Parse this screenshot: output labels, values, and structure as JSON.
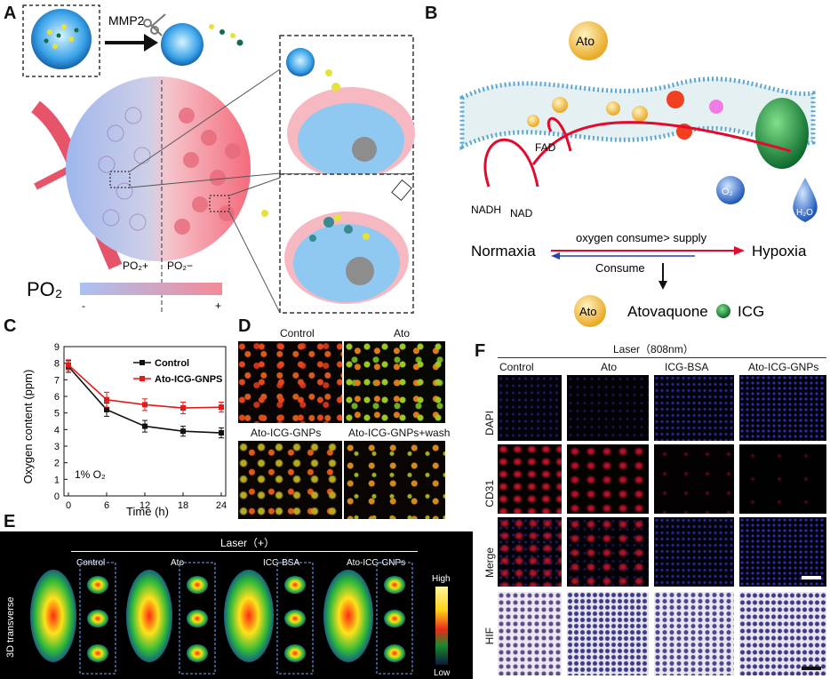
{
  "panels": {
    "a": {
      "letter": "A",
      "enzyme": "MMP2",
      "po2_plus": "PO₂+",
      "po2_minus": "PO₂−",
      "po2_bar_label": "PO₂",
      "scale_minus": "-",
      "scale_plus": "+"
    },
    "b": {
      "letter": "B",
      "ato": "Ato",
      "fad": "FAD",
      "nadh": "NADH",
      "nad": "NAD",
      "o2": "O₂",
      "h2o": "H₂O",
      "normaxia": "Normaxia",
      "hypoxia": "Hypoxia",
      "arrow_top": "oxygen consume> supply",
      "arrow_bottom": "Consume",
      "legend_ato_icon": "Ato",
      "legend_ato": "Atovaquone",
      "legend_icg": "ICG"
    },
    "c": {
      "letter": "C",
      "annotation": "1% O₂"
    },
    "d": {
      "letter": "D",
      "labels": [
        "Control",
        "Ato",
        "Ato-ICG-GNPs",
        "Ato-ICG-GNPs+wash"
      ]
    },
    "e": {
      "letter": "E",
      "header": "Laser（+）",
      "side": "3D transverse",
      "groups": [
        "Control",
        "Ato",
        "ICG-BSA",
        "Ato-ICG-GNPs"
      ],
      "scale_high": "High",
      "scale_low": "Low"
    },
    "f": {
      "letter": "F",
      "header": "Laser（808nm）",
      "columns": [
        "Control",
        "Ato",
        "ICG-BSA",
        "Ato-ICG-GNPs"
      ],
      "rows": [
        "DAPI",
        "CD31",
        "Merge",
        "HIF"
      ]
    }
  },
  "chart_data": {
    "type": "line",
    "xlabel": "Time (h)",
    "ylabel": "Oxygen content (ppm)",
    "x": [
      0,
      6,
      12,
      18,
      24
    ],
    "xlim": [
      0,
      24
    ],
    "ylim": [
      0,
      9
    ],
    "xticks": [
      0,
      6,
      12,
      18,
      24
    ],
    "yticks": [
      0,
      1,
      2,
      3,
      4,
      5,
      6,
      7,
      8,
      9
    ],
    "grid": false,
    "legend_position": "top-right",
    "series": [
      {
        "name": "Control",
        "color": "#111111",
        "values": [
          7.8,
          5.2,
          4.2,
          3.9,
          3.8
        ],
        "errors": [
          0.35,
          0.4,
          0.35,
          0.3,
          0.3
        ]
      },
      {
        "name": "Ato-ICG-GNPS",
        "color": "#e21a1a",
        "values": [
          7.9,
          5.8,
          5.5,
          5.3,
          5.35
        ],
        "errors": [
          0.3,
          0.45,
          0.35,
          0.35,
          0.3
        ]
      }
    ]
  }
}
